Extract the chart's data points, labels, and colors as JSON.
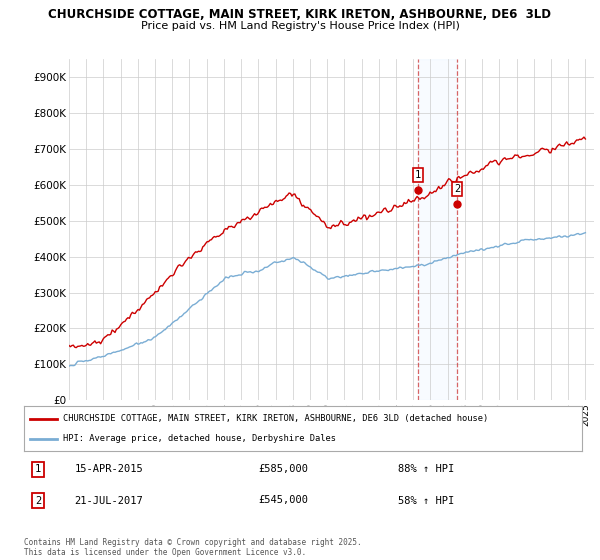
{
  "title1": "CHURCHSIDE COTTAGE, MAIN STREET, KIRK IRETON, ASHBOURNE, DE6  3LD",
  "title2": "Price paid vs. HM Land Registry's House Price Index (HPI)",
  "ylim": [
    0,
    950000
  ],
  "yticks": [
    0,
    100000,
    200000,
    300000,
    400000,
    500000,
    600000,
    700000,
    800000,
    900000
  ],
  "ytick_labels": [
    "£0",
    "£100K",
    "£200K",
    "£300K",
    "£400K",
    "£500K",
    "£600K",
    "£700K",
    "£800K",
    "£900K"
  ],
  "sale1_year": 2015.29,
  "sale1_price": 585000,
  "sale2_year": 2017.54,
  "sale2_price": 545000,
  "legend_line1": "CHURCHSIDE COTTAGE, MAIN STREET, KIRK IRETON, ASHBOURNE, DE6 3LD (detached house)",
  "legend_line2": "HPI: Average price, detached house, Derbyshire Dales",
  "footnote": "Contains HM Land Registry data © Crown copyright and database right 2025.\nThis data is licensed under the Open Government Licence v3.0.",
  "red_color": "#cc0000",
  "blue_color": "#7aadd4",
  "background_color": "#ffffff",
  "grid_color": "#cccccc",
  "shade_color": "#ddeeff"
}
